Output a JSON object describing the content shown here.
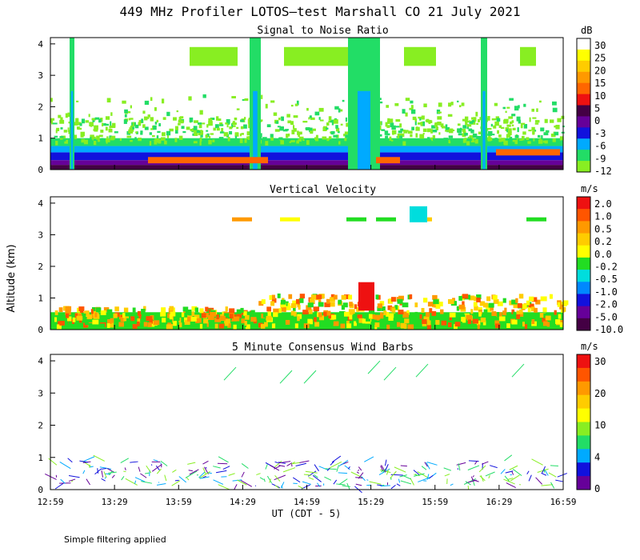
{
  "figure": {
    "title": "449 MHz Profiler LOTOS–test Marshall CO 21 July 2021",
    "ylabel": "Altitude (km)",
    "xlabel": "UT  (CDT - 5)",
    "footnote": "Simple filtering applied"
  },
  "chart_data": [
    {
      "type": "heatmap",
      "title": "Signal to Noise Ratio",
      "ylim": [
        0,
        4.2
      ],
      "yticks": [
        "0",
        "1",
        "2",
        "3",
        "4"
      ],
      "xticks": [
        "12:59",
        "13:29",
        "13:59",
        "14:29",
        "14:59",
        "15:29",
        "15:59",
        "16:29",
        "16:59"
      ],
      "colorbar": {
        "unit": "dB",
        "labels": [
          "30",
          "25",
          "20",
          "15",
          "10",
          "5",
          "0",
          "-3",
          "-6",
          "-9",
          "-12"
        ],
        "colors": [
          "#ffffff",
          "#ffff00",
          "#ffcc00",
          "#ff9900",
          "#ff6600",
          "#ee1111",
          "#440044",
          "#660099",
          "#1111dd",
          "#00aaff",
          "#22dd66",
          "#88ee22"
        ]
      }
    },
    {
      "type": "heatmap",
      "title": "Vertical Velocity",
      "ylim": [
        0,
        4.2
      ],
      "yticks": [
        "0",
        "1",
        "2",
        "3",
        "4"
      ],
      "xticks": [
        "12:59",
        "13:29",
        "13:59",
        "14:29",
        "14:59",
        "15:29",
        "15:59",
        "16:29",
        "16:59"
      ],
      "colorbar": {
        "unit": "m/s",
        "labels": [
          "2.0",
          "1.0",
          "0.5",
          "0.2",
          "0.0",
          "-0.2",
          "-0.5",
          "-1.0",
          "-2.0",
          "-5.0",
          "-10.0"
        ],
        "colors": [
          "#ee1111",
          "#ff5500",
          "#ff9900",
          "#ffcc00",
          "#ffff00",
          "#22dd22",
          "#00dddd",
          "#0088ff",
          "#1111dd",
          "#660099",
          "#440044"
        ]
      }
    },
    {
      "type": "scatter",
      "title": "5 Minute Consensus Wind Barbs",
      "ylim": [
        0,
        4.2
      ],
      "yticks": [
        "0",
        "1",
        "2",
        "3",
        "4"
      ],
      "xticks": [
        "12:59",
        "13:29",
        "13:59",
        "14:29",
        "14:59",
        "15:29",
        "15:59",
        "16:29",
        "16:59"
      ],
      "colorbar": {
        "unit": "m/s",
        "labels": [
          "30",
          "20",
          "10",
          "4",
          "0"
        ],
        "colors": [
          "#ee1111",
          "#ff5500",
          "#ff9900",
          "#ffcc00",
          "#ffff00",
          "#88ee22",
          "#22dd66",
          "#00aaff",
          "#1111dd",
          "#660099"
        ]
      }
    }
  ]
}
